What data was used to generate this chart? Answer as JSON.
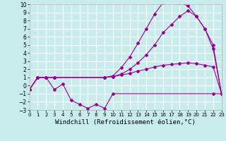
{
  "xlabel": "Windchill (Refroidissement éolien,°C)",
  "bg_color": "#c8ecec",
  "grid_color": "#ffffff",
  "line_color": "#990099",
  "xmin": 0,
  "xmax": 23,
  "ymin": -3,
  "ymax": 10,
  "yticks": [
    -3,
    -2,
    -1,
    0,
    1,
    2,
    3,
    4,
    5,
    6,
    7,
    8,
    9,
    10
  ],
  "xticks": [
    0,
    1,
    2,
    3,
    4,
    5,
    6,
    7,
    8,
    9,
    10,
    11,
    12,
    13,
    14,
    15,
    16,
    17,
    18,
    19,
    20,
    21,
    22,
    23
  ],
  "line1_x": [
    0,
    1,
    2,
    3,
    9,
    10,
    11,
    12,
    13,
    14,
    15,
    16,
    17,
    18,
    19,
    20,
    21,
    22,
    23
  ],
  "line1_y": [
    -0.5,
    1.0,
    1.0,
    1.0,
    1.0,
    1.1,
    1.3,
    1.5,
    1.8,
    2.0,
    2.3,
    2.5,
    2.6,
    2.7,
    2.8,
    2.7,
    2.5,
    2.3,
    -1.0
  ],
  "line2_x": [
    0,
    1,
    2,
    3,
    9,
    10,
    11,
    12,
    13,
    14,
    15,
    16,
    17,
    18,
    19,
    20,
    21,
    22,
    23
  ],
  "line2_y": [
    -0.5,
    1.0,
    1.0,
    1.0,
    1.0,
    1.1,
    1.4,
    2.0,
    2.8,
    3.8,
    5.0,
    6.5,
    7.5,
    8.5,
    9.2,
    8.5,
    7.0,
    5.0,
    -1.0
  ],
  "line3_x": [
    0,
    1,
    2,
    3,
    4,
    5,
    6,
    7,
    8,
    9,
    10,
    22,
    23
  ],
  "line3_y": [
    -0.5,
    1.0,
    1.0,
    -0.5,
    0.2,
    -1.8,
    -2.3,
    -2.8,
    -2.3,
    -2.8,
    -1.0,
    -1.0,
    -1.0
  ],
  "line4_x": [
    0,
    1,
    2,
    3,
    9,
    10,
    11,
    12,
    13,
    14,
    15,
    16,
    17,
    18,
    19,
    20,
    21,
    22,
    23
  ],
  "line4_y": [
    -0.5,
    1.0,
    1.0,
    1.0,
    1.0,
    1.2,
    2.2,
    3.5,
    5.2,
    7.0,
    8.8,
    10.2,
    10.5,
    10.2,
    9.8,
    8.5,
    7.0,
    4.5,
    -1.0
  ],
  "xlabel_fontsize": 6.5,
  "ytick_fontsize": 5.5,
  "xtick_fontsize": 5.0,
  "marker_size": 2.0,
  "line_width": 0.8
}
